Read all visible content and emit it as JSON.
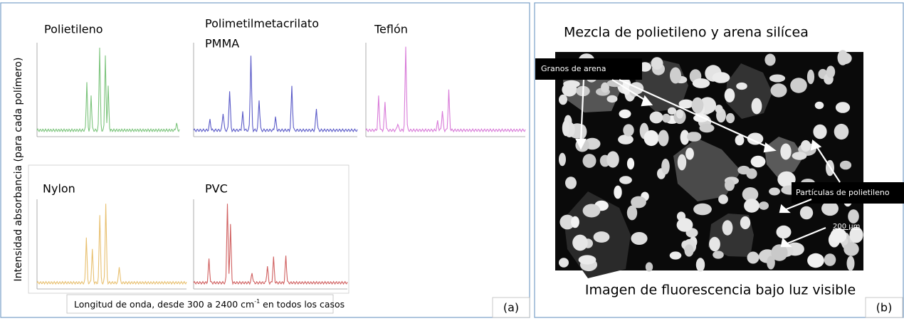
{
  "panel_a": {
    "spectra": [
      {
        "label": "Polietileno"
      },
      {
        "label": "Polimetilmetacrilato",
        "sublabel": "PMMA"
      },
      {
        "label": "Teflón"
      },
      {
        "label": "Nylon"
      },
      {
        "label": "PVC"
      }
    ],
    "y_label": "Intensidad absorbancia (para cada polímero)",
    "x_label": {
      "text": "Longitud de onda, desde 300 a 2400 cm",
      "sup": "-1",
      "tail": " en todos los casos"
    },
    "tag": "(a)"
  },
  "panel_b": {
    "title": "Mezcla de polietileno y arena silícea",
    "label_sand": "Granos de arena",
    "label_particles": "Partículas de polietileno",
    "scale": "200 µm",
    "caption": "Imagen de fluorescencia bajo luz visible",
    "tag": "(b)"
  }
}
